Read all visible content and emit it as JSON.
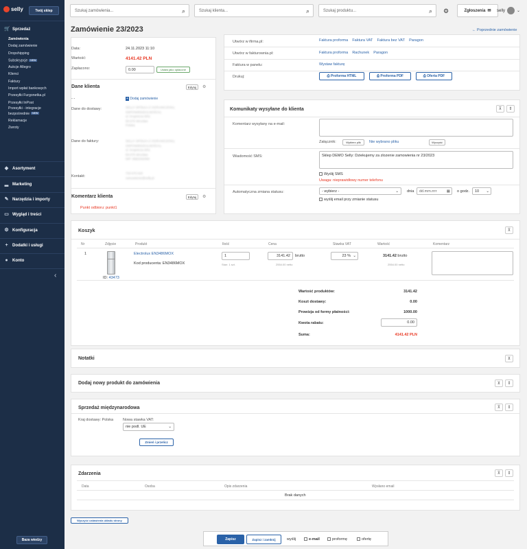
{
  "sidebar": {
    "logo": "selly",
    "shop_button": "Twój sklep",
    "sales": "Sprzedaż",
    "items": [
      "Zamówienia",
      "Dodaj zamówienie",
      "Dropshipping",
      "Subskrypcje",
      "Aukcje Allegro",
      "Klienci",
      "Faktury",
      "Import wpłat bankowych",
      "Przesyłki Furgonetka.pl",
      "Przesyłki InPost",
      "Przesyłki - integracje bezpośrednie",
      "Reklamacje",
      "Zwroty"
    ],
    "badge_new": "NEW",
    "sections": [
      "Asortyment",
      "Marketing",
      "Narzędzia i importy",
      "Wygląd i treści",
      "Konfiguracja",
      "Dodatki i usługi",
      "Konto"
    ],
    "help_button": "Baza wiedzy"
  },
  "topbar": {
    "search_orders": "Szukaj zamówienia...",
    "search_client": "Szukaj klienta...",
    "search_product": "Szukaj produktu...",
    "notifications": "Zgłoszenia",
    "user": "selly"
  },
  "page": {
    "title": "Zamówienie 23/2023",
    "prev_link": "Poprzednie zamówienie"
  },
  "order": {
    "date_label": "Data:",
    "date": "24.11.2023 11:10",
    "value_label": "Wartość:",
    "value": "4141.42 PLN",
    "paid_label": "Zapłacono:",
    "paid": "0.00",
    "mark_paid": "Ustaw jako opłacone"
  },
  "client": {
    "title": "Dane klienta",
    "edit": "Edytuj",
    "dash": "- -",
    "add_order": "Dodaj zamówienie",
    "delivery_label": "Dane do dostawy:",
    "invoice_label": "Dane do faktury:",
    "contact_label": "Kontakt:",
    "delivery_lines": [
      "SELLY SPÓŁKA Z OGRANICZONĄ",
      "ODPOWIEDZIALNOŚCIĄ",
      "ul. Krupnicza 5/01",
      "50-075 Wrocław",
      "Polska"
    ],
    "invoice_lines": [
      "SELLY SPÓŁKA Z OGRANICZONĄ",
      "ODPOWIEDZIALNOŚCIĄ",
      "ul. Krupnicza 5/01",
      "50-075 Wrocław",
      "NIP: 8982262060"
    ],
    "contact_lines": [
      "733 670 633",
      "zamowienie@selly.pl"
    ]
  },
  "comment": {
    "title": "Komentarz klienta",
    "edit": "Edytuj",
    "text": "Punkt odbioru: punkt1"
  },
  "invoices": {
    "ifirma_label": "Utwórz w ifirma.pl:",
    "ifirma": [
      "Faktura proforma",
      "Faktura VAT",
      "Faktura bez VAT",
      "Paragon"
    ],
    "fakturownia_label": "Utwórz w fakturownia.pl:",
    "fakturownia": [
      "Faktura proforma",
      "Rachunek",
      "Paragon"
    ],
    "panel_label": "Faktura w panelu:",
    "panel": "Wystaw fakturę",
    "print_label": "Drukuj:",
    "print": [
      "Proforma HTML",
      "Proforma PDF",
      "Oferta PDF"
    ]
  },
  "messages": {
    "title": "Komunikaty wysyłane do klienta",
    "email_label": "Komentarz wysyłany na e-mail:",
    "attach_label": "Załącznik:",
    "choose_file": "Wybierz plik",
    "no_file": "Nie wybrano pliku",
    "clear": "Wyczyść",
    "sms_label": "Wiadomość SMS:",
    "sms_text": "Sklep DEMO Selly: Dziekujemy za zlozenie zamowienia nr 23/2023",
    "send_sms": "Wyślij SMS",
    "warning": "Uwaga: nieprawidłowy numer telefonu",
    "auto_label": "Automatyczna zmiana statusu:",
    "auto_select": "- wybierz -",
    "day_label": "dnia",
    "date_placeholder": "dd.mm.rrrr",
    "hour_label": "o godz.",
    "hour": "10",
    "send_email_change": "wyślij email przy zmianie statusu"
  },
  "cart": {
    "title": "Koszyk",
    "headers": [
      "Nr",
      "Zdjęcie",
      "Produkt",
      "Ilość",
      "Cena",
      "Stawka VAT",
      "Wartość",
      "Komentarz"
    ],
    "item": {
      "nr": "1",
      "id_label": "ID:",
      "id": "43473",
      "product": "Electrolux EN3486MOX",
      "code_label": "Kod producenta:",
      "code": "EN3486MOX",
      "qty": "1",
      "stock": "Stan: 1 szt.",
      "price": "3141.42",
      "brutto": "brutto",
      "netto": "2554.00 netto",
      "vat": "23 %",
      "value": "3141.42",
      "value_brutto": "brutto",
      "value_netto": "2554.00 netto"
    },
    "summary": {
      "products_label": "Wartość produktów:",
      "products": "3141.42",
      "delivery_label": "Koszt dostawy:",
      "delivery": "0.00",
      "fee_label": "Prowizja od formy płatności:",
      "fee": "1000.00",
      "discount_label": "Kwota rabatu:",
      "discount": "0.00",
      "total_label": "Suma:",
      "total": "4141.42 PLN"
    }
  },
  "notes": {
    "title": "Notatki"
  },
  "add_product": {
    "title": "Dodaj nowy produkt do zamówienia"
  },
  "intl": {
    "title": "Sprzedaż międzynarodowa",
    "country_label": "Kraj dostawy:",
    "country": "Polska",
    "vat_label": "Nowa stawka VAT:",
    "vat": "nie podl. UE",
    "recalc": "Zmień i przelicz"
  },
  "events": {
    "title": "Zdarzenia",
    "headers": [
      "Data",
      "Osoba",
      "Opis zdarzenia",
      "Wysłano email"
    ],
    "empty": "Brak danych"
  },
  "reset_layout": "Wyczyść ustawienia układu strony",
  "bottom": {
    "save": "Zapisz",
    "save_close": "Zapisz i zamknij",
    "send": "wyślij",
    "email": "e-mail",
    "proforma": "proformę",
    "offer": "ofertę"
  }
}
